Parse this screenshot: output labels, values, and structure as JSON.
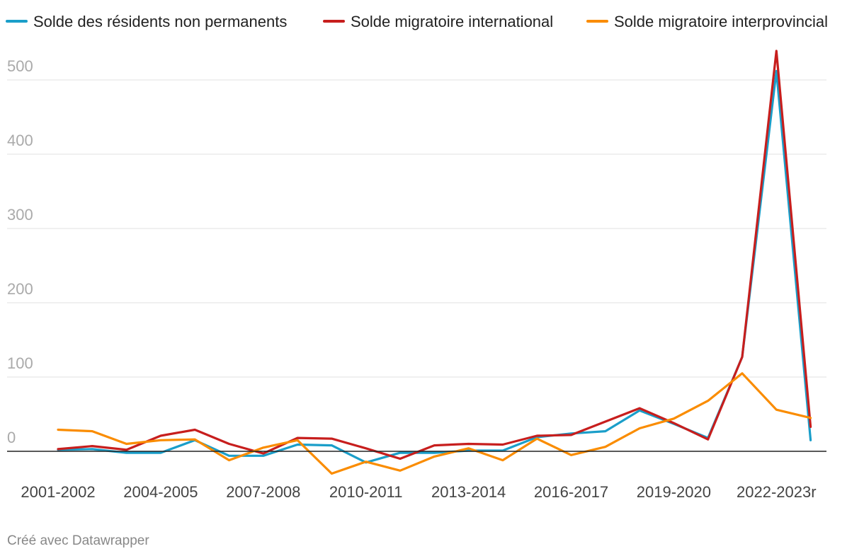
{
  "chart_data": {
    "type": "line",
    "title": "",
    "xlabel": "",
    "ylabel": "",
    "ylim": [
      -30,
      550
    ],
    "y_ticks": [
      0,
      100,
      200,
      300,
      400,
      500
    ],
    "grid": true,
    "legend_position": "top",
    "categories": [
      "2001-2002",
      "2002-2003",
      "2003-2004",
      "2004-2005",
      "2005-2006",
      "2006-2007",
      "2007-2008",
      "2008-2009",
      "2009-2010",
      "2010-2011",
      "2011-2012",
      "2012-2013",
      "2013-2014",
      "2014-2015",
      "2015-2016",
      "2016-2017",
      "2017-2018",
      "2018-2019",
      "2019-2020",
      "2020-2021",
      "2021-2022",
      "2022-2023r",
      "2023-2024p"
    ],
    "x_tick_labels": [
      "2001-2002",
      "2004-2005",
      "2007-2008",
      "2010-2011",
      "2013-2014",
      "2016-2017",
      "2019-2020",
      "2022-2023r"
    ],
    "series": [
      {
        "name": "Solde des résidents non permanents",
        "color": "#1a9ec9",
        "values": [
          2,
          3,
          -2,
          -2,
          15,
          -6,
          -6,
          9,
          8,
          -15,
          -2,
          -2,
          1,
          1,
          19,
          24,
          27,
          55,
          37,
          18,
          127,
          512,
          15
        ]
      },
      {
        "name": "Solde migratoire international",
        "color": "#c71e1d",
        "values": [
          3,
          7,
          2,
          21,
          29,
          10,
          -3,
          18,
          17,
          4,
          -10,
          8,
          10,
          9,
          21,
          22,
          40,
          58,
          38,
          16,
          127,
          539,
          33
        ]
      },
      {
        "name": "Solde migratoire interprovincial",
        "color": "#fa8c00",
        "values": [
          29,
          27,
          10,
          15,
          16,
          -12,
          5,
          15,
          -30,
          -14,
          -26,
          -7,
          4,
          -12,
          17,
          -5,
          6,
          31,
          44,
          68,
          105,
          56,
          45
        ]
      }
    ]
  },
  "footer": {
    "credit": "Créé avec Datawrapper"
  }
}
